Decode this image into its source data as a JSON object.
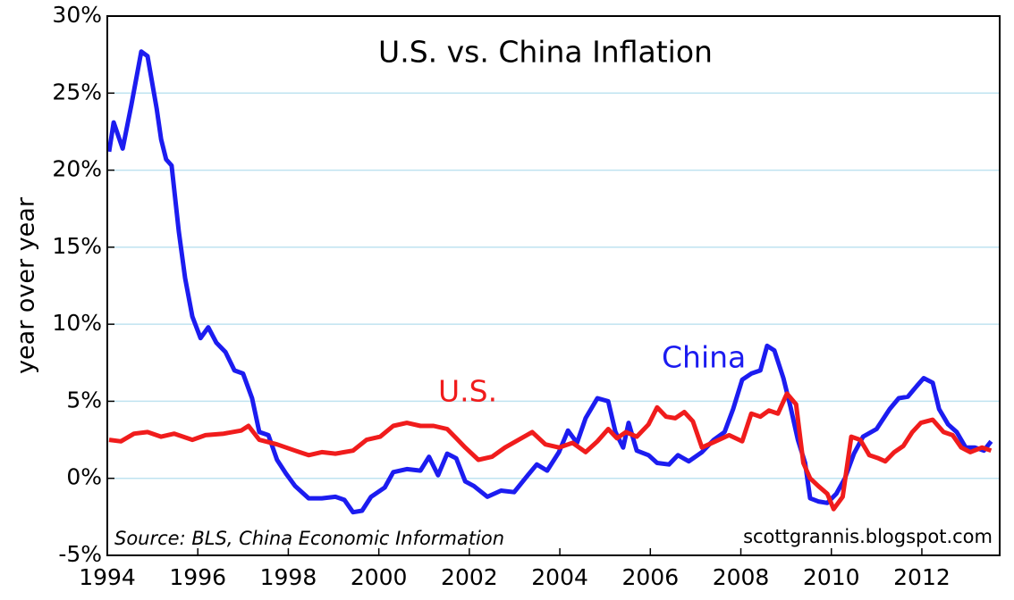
{
  "chart_data": {
    "type": "line",
    "title": "U.S. vs. China Inflation",
    "y_label": "year over year",
    "source": "Source: BLS, China Economic Information",
    "credit": "scottgrannis.blogspot.com",
    "xlim": [
      1994,
      2013.72
    ],
    "xticks": [
      1994,
      1996,
      1998,
      2000,
      2002,
      2004,
      2006,
      2008,
      2010,
      2012
    ],
    "ylim": [
      -5,
      30
    ],
    "yticks": [
      {
        "value": -5,
        "label": "-5%"
      },
      {
        "value": 0,
        "label": "0%"
      },
      {
        "value": 5,
        "label": "5%"
      },
      {
        "value": 10,
        "label": "10%"
      },
      {
        "value": 15,
        "label": "15%"
      },
      {
        "value": 20,
        "label": "20%"
      },
      {
        "value": 25,
        "label": "25%"
      },
      {
        "value": 30,
        "label": "30%"
      }
    ],
    "grid": true,
    "series": [
      {
        "name": "China",
        "color": "#1c1cf0",
        "x": [
          1994.04,
          1994.14,
          1994.34,
          1994.53,
          1994.75,
          1994.89,
          1995.09,
          1995.19,
          1995.3,
          1995.42,
          1995.58,
          1995.72,
          1995.88,
          1996.06,
          1996.23,
          1996.41,
          1996.61,
          1996.81,
          1997.0,
          1997.2,
          1997.36,
          1997.56,
          1997.75,
          1997.95,
          1998.15,
          1998.45,
          1998.74,
          1999.04,
          1999.24,
          1999.43,
          1999.63,
          1999.83,
          2000.13,
          2000.32,
          2000.62,
          2000.92,
          2001.11,
          2001.31,
          2001.51,
          2001.71,
          2001.91,
          2002.1,
          2002.4,
          2002.7,
          2002.99,
          2003.29,
          2003.49,
          2003.72,
          2003.98,
          2004.18,
          2004.38,
          2004.57,
          2004.83,
          2005.07,
          2005.23,
          2005.4,
          2005.52,
          2005.7,
          2005.96,
          2006.15,
          2006.41,
          2006.61,
          2006.85,
          2007.14,
          2007.4,
          2007.64,
          2007.83,
          2008.03,
          2008.23,
          2008.43,
          2008.58,
          2008.74,
          2008.94,
          2009.1,
          2009.26,
          2009.42,
          2009.53,
          2009.71,
          2009.91,
          2010.11,
          2010.3,
          2010.5,
          2010.7,
          2011.0,
          2011.29,
          2011.49,
          2011.69,
          2011.89,
          2012.04,
          2012.24,
          2012.38,
          2012.58,
          2012.77,
          2012.97,
          2013.17,
          2013.37,
          2013.53
        ],
        "values": [
          21.2,
          23.1,
          21.4,
          24.2,
          27.7,
          27.4,
          24,
          22,
          20.7,
          20.3,
          16,
          13,
          10.5,
          9.1,
          9.8,
          8.8,
          8.2,
          7,
          6.8,
          5.2,
          3,
          2.8,
          1.2,
          0.3,
          -0.5,
          -1.3,
          -1.3,
          -1.2,
          -1.4,
          -2.2,
          -2.1,
          -1.2,
          -0.6,
          0.4,
          0.6,
          0.5,
          1.4,
          0.2,
          1.6,
          1.3,
          -0.2,
          -0.5,
          -1.2,
          -0.8,
          -0.9,
          0.2,
          0.9,
          0.5,
          1.7,
          3.1,
          2.3,
          3.9,
          5.2,
          5.0,
          3.0,
          2.0,
          3.6,
          1.8,
          1.5,
          1.0,
          0.9,
          1.5,
          1.1,
          1.7,
          2.5,
          3.0,
          4.5,
          6.4,
          6.8,
          7.0,
          8.6,
          8.3,
          6.5,
          4.6,
          2.5,
          1.0,
          -1.3,
          -1.5,
          -1.6,
          -1.0,
          0,
          1.6,
          2.7,
          3.2,
          4.5,
          5.2,
          5.3,
          6.0,
          6.5,
          6.2,
          4.5,
          3.5,
          3.0,
          2.0,
          2.0,
          1.8,
          2.4
        ]
      },
      {
        "name": "U.S.",
        "color": "#f01c1c",
        "x": [
          1994.04,
          1994.3,
          1994.59,
          1994.89,
          1995.19,
          1995.48,
          1995.88,
          1996.17,
          1996.57,
          1996.96,
          1997.12,
          1997.36,
          1997.75,
          1998.15,
          1998.45,
          1998.74,
          1999.04,
          1999.43,
          1999.73,
          2000.03,
          2000.32,
          2000.62,
          2000.92,
          2001.21,
          2001.51,
          2001.71,
          2001.91,
          2002.2,
          2002.5,
          2002.79,
          2003.09,
          2003.39,
          2003.68,
          2003.98,
          2004.28,
          2004.57,
          2004.83,
          2005.07,
          2005.26,
          2005.46,
          2005.7,
          2005.96,
          2006.15,
          2006.35,
          2006.55,
          2006.75,
          2006.94,
          2007.14,
          2007.44,
          2007.74,
          2008.03,
          2008.23,
          2008.43,
          2008.62,
          2008.82,
          2009.02,
          2009.22,
          2009.38,
          2009.53,
          2009.71,
          2009.91,
          2010.05,
          2010.25,
          2010.44,
          2010.64,
          2010.84,
          2011.04,
          2011.19,
          2011.39,
          2011.59,
          2011.79,
          2011.98,
          2012.24,
          2012.48,
          2012.68,
          2012.87,
          2013.07,
          2013.33,
          2013.53
        ],
        "values": [
          2.5,
          2.4,
          2.9,
          3.0,
          2.7,
          2.9,
          2.5,
          2.8,
          2.9,
          3.1,
          3.4,
          2.5,
          2.2,
          1.8,
          1.5,
          1.7,
          1.6,
          1.8,
          2.5,
          2.7,
          3.4,
          3.6,
          3.4,
          3.4,
          3.2,
          2.6,
          2.0,
          1.2,
          1.4,
          2.0,
          2.5,
          3.0,
          2.2,
          2.0,
          2.3,
          1.7,
          2.4,
          3.2,
          2.6,
          3.0,
          2.7,
          3.5,
          4.6,
          4.0,
          3.9,
          4.3,
          3.7,
          2.0,
          2.4,
          2.8,
          2.4,
          4.2,
          4.0,
          4.4,
          4.2,
          5.5,
          4.8,
          1.0,
          0.0,
          -0.5,
          -1.0,
          -2.0,
          -1.2,
          2.7,
          2.5,
          1.5,
          1.3,
          1.1,
          1.7,
          2.1,
          3.0,
          3.6,
          3.8,
          3.0,
          2.8,
          2.0,
          1.7,
          2.0,
          1.8
        ]
      }
    ]
  }
}
